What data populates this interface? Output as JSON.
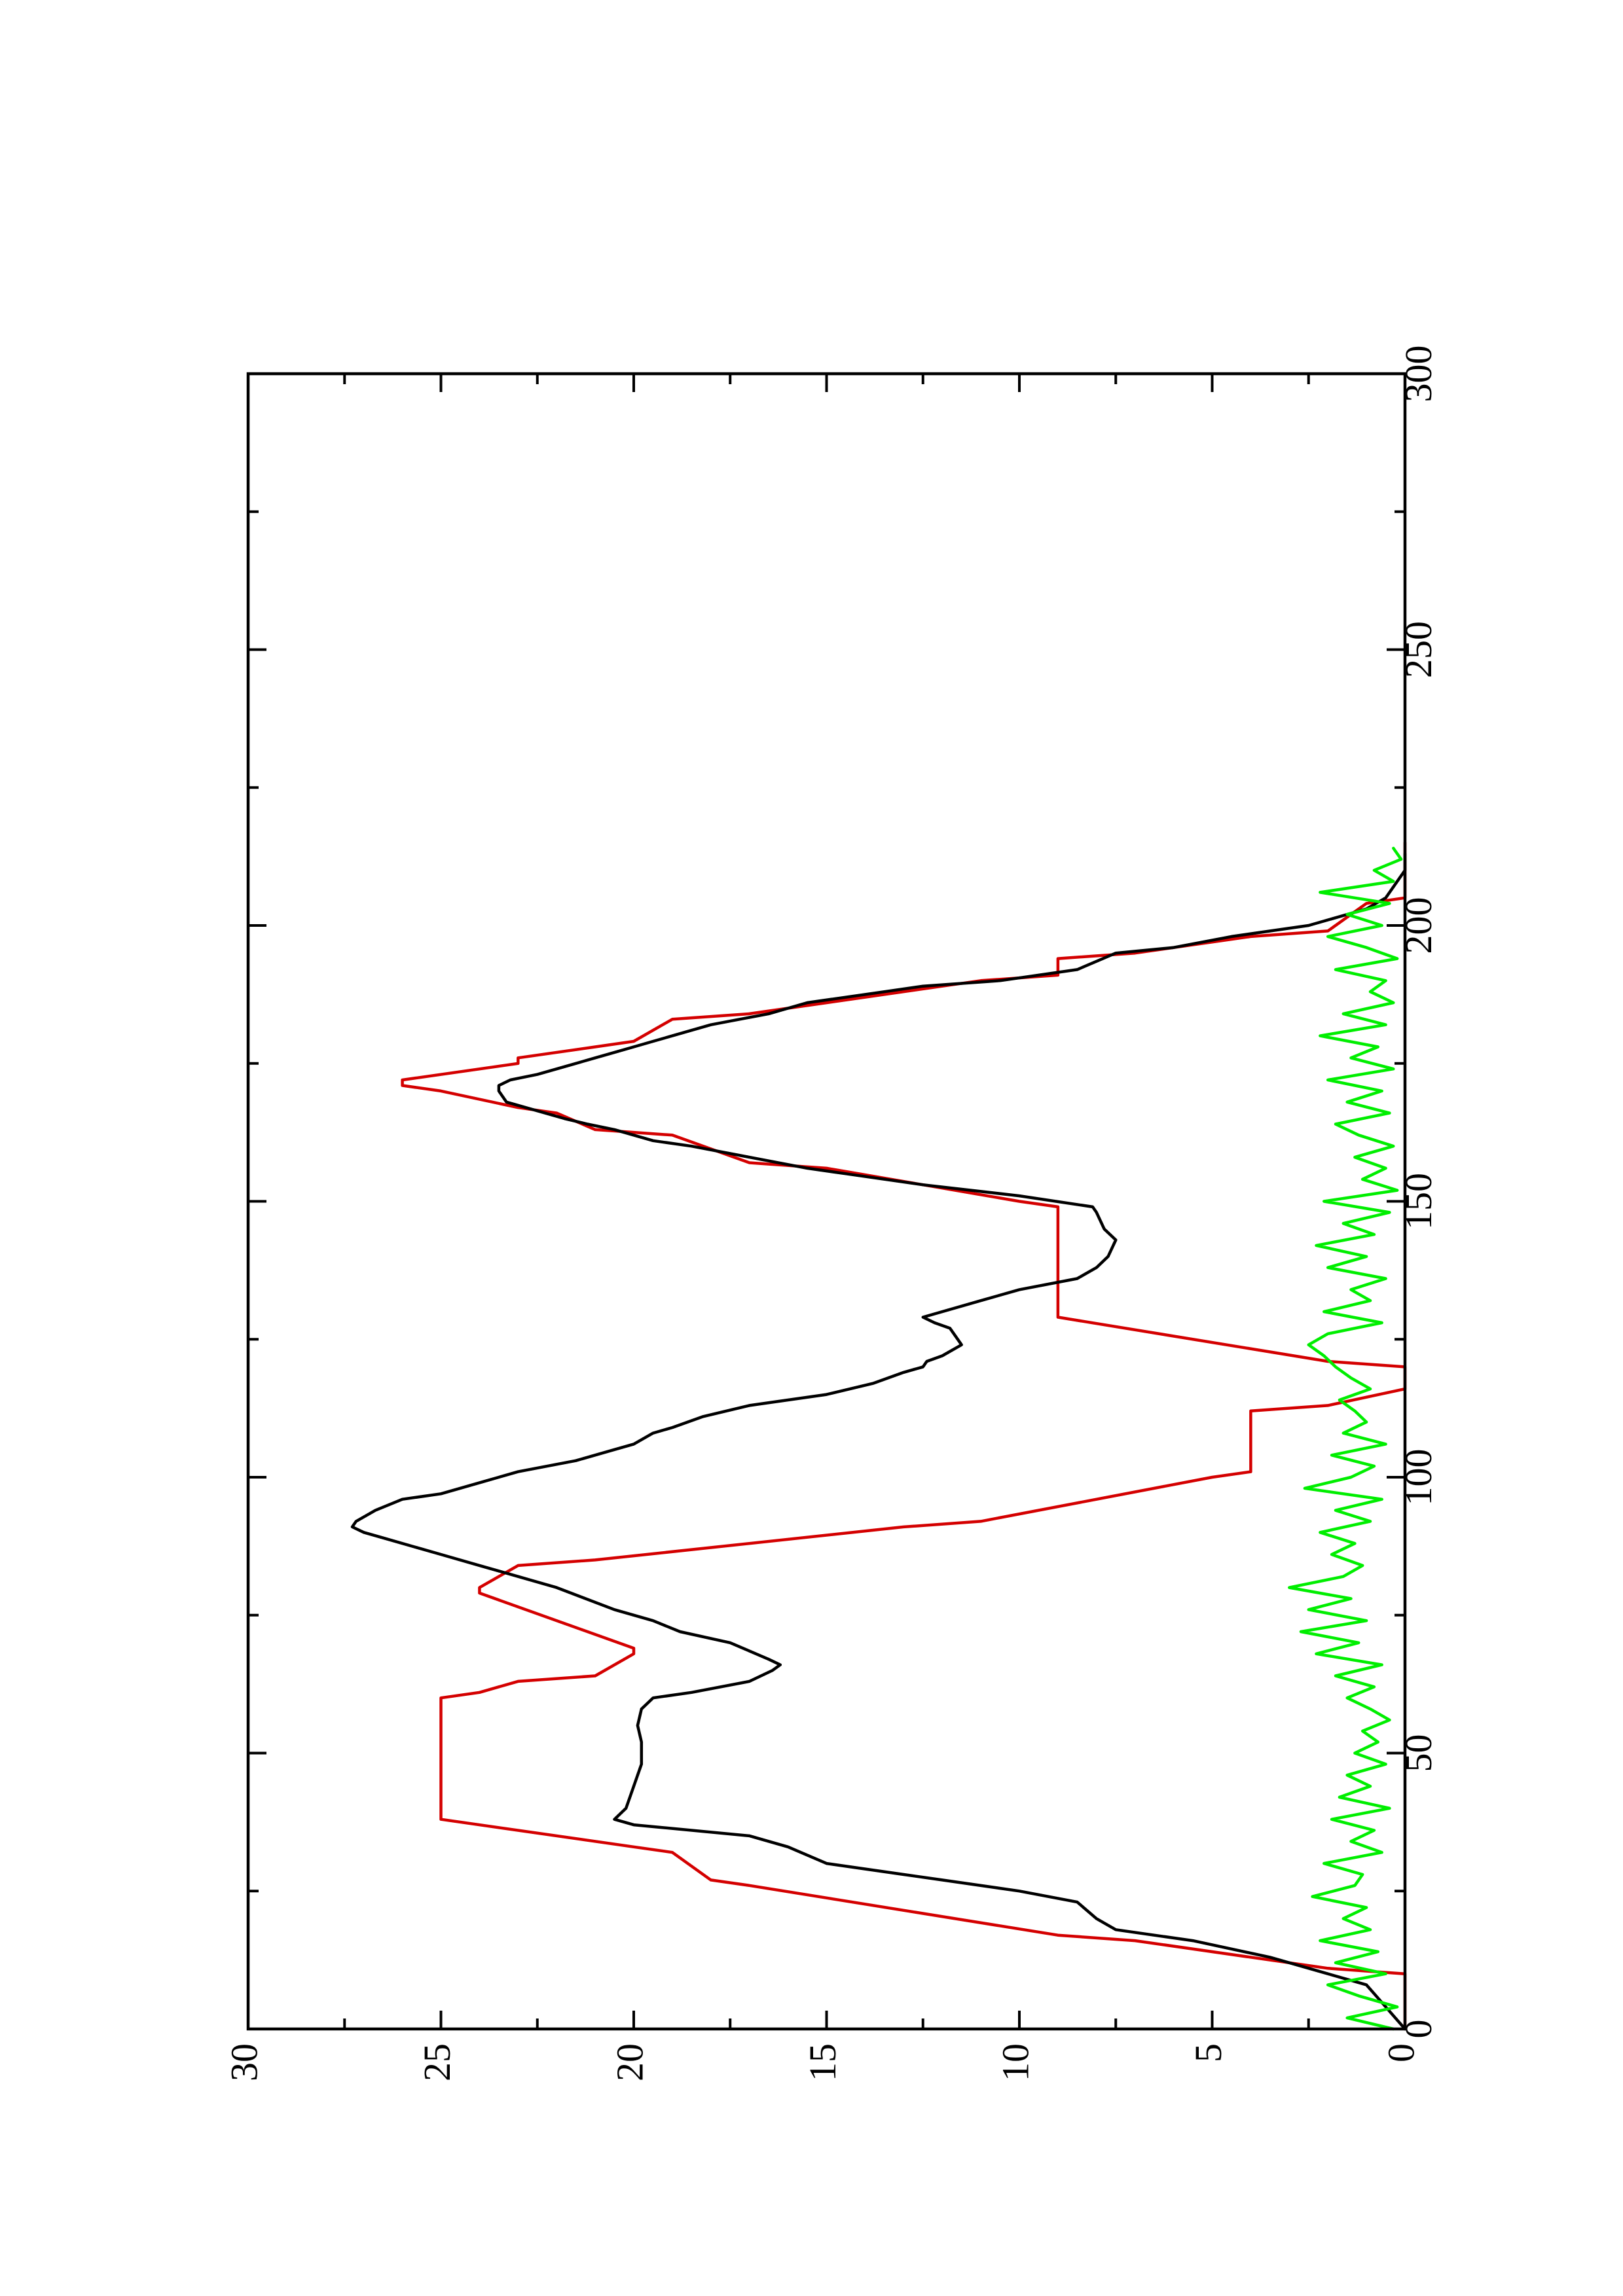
{
  "chart_data": {
    "type": "line",
    "orientation": "rotated-90-ccw",
    "xlim": [
      0,
      300
    ],
    "ylim": [
      0,
      30
    ],
    "x_ticks": [
      "0",
      "50",
      "100",
      "150",
      "200",
      "250",
      "300"
    ],
    "y_ticks": [
      "0",
      "5",
      "10",
      "15",
      "20",
      "25",
      "30"
    ],
    "grid": false,
    "series": [
      {
        "color": "#d40000",
        "style": "step-ramp",
        "x": [
          0,
          10,
          11,
          16,
          17,
          26,
          27,
          32,
          33,
          38,
          60,
          61,
          63,
          64,
          68,
          69,
          79,
          80,
          84,
          85,
          91,
          92,
          100,
          101,
          112,
          113,
          116,
          120,
          121,
          129,
          149,
          150,
          156,
          157,
          162,
          163,
          166,
          167,
          170,
          171,
          172,
          175,
          176,
          178,
          179,
          183,
          184,
          190,
          191,
          194,
          195,
          198,
          199,
          204,
          205,
          215
        ],
        "y": [
          0,
          0,
          2,
          7,
          9,
          17,
          18,
          19,
          20,
          25,
          25,
          24,
          23,
          21,
          20,
          20,
          24,
          24,
          23,
          21,
          13,
          11,
          5,
          4,
          4,
          2,
          0,
          0,
          2,
          9,
          9,
          10,
          15,
          17,
          19,
          21,
          22,
          23,
          25,
          26,
          26,
          23,
          23,
          21,
          20,
          19,
          17,
          11,
          9,
          9,
          7,
          4,
          2,
          1,
          0,
          0
        ]
      },
      {
        "color": "#000000",
        "style": "line",
        "x": [
          0,
          4,
          8,
          10,
          13,
          16,
          18,
          20,
          23,
          25,
          27,
          28,
          30,
          33,
          35,
          37,
          38,
          40,
          44,
          48,
          52,
          55,
          58,
          60,
          61,
          63,
          65,
          66,
          67,
          70,
          72,
          74,
          76,
          80,
          82,
          84,
          86,
          87,
          89,
          90,
          91,
          92,
          94,
          96,
          97,
          99,
          100,
          101,
          103,
          105,
          106,
          108,
          109,
          111,
          113,
          115,
          117,
          119,
          120,
          121,
          122,
          124,
          126,
          127,
          128,
          129,
          132,
          134,
          136,
          138,
          140,
          143,
          145,
          148,
          149,
          151,
          153,
          155,
          156,
          158,
          160,
          161,
          163,
          164,
          165,
          167,
          168,
          170,
          171,
          172,
          173,
          175,
          176,
          177,
          178,
          179,
          180,
          182,
          184,
          186,
          188,
          189,
          190,
          192,
          195,
          196,
          198,
          200,
          203,
          205,
          208,
          210,
          212,
          213
        ],
        "y": [
          0,
          0.5,
          1,
          2,
          3.5,
          5.5,
          7.5,
          8,
          8.5,
          10,
          12,
          13,
          15,
          16,
          17,
          20,
          20.5,
          20.2,
          20,
          19.8,
          19.8,
          19.9,
          19.8,
          19.5,
          18.5,
          17,
          16.4,
          16.2,
          16.5,
          17.5,
          18.8,
          19.5,
          20.5,
          22,
          23,
          24,
          25,
          25.5,
          26.5,
          27,
          27.3,
          27.2,
          26.7,
          26,
          25,
          24,
          23.5,
          23,
          21.5,
          20.5,
          20,
          19.5,
          19,
          18.2,
          17,
          15,
          13.8,
          13,
          12.5,
          12.4,
          12,
          11.5,
          11.7,
          11.8,
          12.2,
          12.5,
          11,
          10,
          8.5,
          8,
          7.7,
          7.5,
          7.8,
          8,
          8.1,
          10,
          12.5,
          14.5,
          15.5,
          17,
          18.5,
          19.5,
          20.5,
          21.2,
          21.8,
          22.8,
          23.3,
          23.5,
          23.5,
          23.2,
          22.5,
          21.5,
          21,
          20.5,
          20,
          19.5,
          19,
          18,
          16.5,
          15.5,
          13.5,
          12.5,
          10.5,
          8.5,
          7.5,
          6,
          4.5,
          2.5,
          1,
          0.5,
          0.2,
          0,
          0,
          0
        ]
      },
      {
        "color": "#00ee00",
        "style": "noisy",
        "x": [
          0,
          2,
          4,
          6,
          8,
          10,
          12,
          14,
          16,
          18,
          20,
          22,
          24,
          26,
          28,
          30,
          32,
          34,
          36,
          38,
          40,
          42,
          44,
          46,
          48,
          50,
          52,
          54,
          56,
          58,
          60,
          62,
          64,
          66,
          68,
          70,
          72,
          74,
          76,
          78,
          80,
          82,
          84,
          86,
          88,
          90,
          92,
          94,
          96,
          98,
          100,
          102,
          104,
          106,
          108,
          110,
          112,
          114,
          116,
          118,
          120,
          122,
          124,
          126,
          128,
          130,
          132,
          134,
          136,
          138,
          140,
          142,
          144,
          146,
          148,
          150,
          152,
          154,
          156,
          158,
          160,
          162,
          164,
          166,
          168,
          170,
          172,
          174,
          176,
          178,
          180,
          182,
          184,
          186,
          188,
          190,
          192,
          194,
          196,
          198,
          200,
          202,
          204,
          206,
          208,
          210,
          212,
          214
        ],
        "y": [
          0.3,
          1.5,
          0.2,
          1.2,
          2.0,
          0.5,
          1.8,
          0.7,
          2.2,
          0.9,
          1.6,
          1.0,
          2.4,
          1.3,
          1.1,
          2.1,
          0.6,
          1.4,
          0.8,
          1.9,
          0.4,
          1.7,
          0.9,
          1.5,
          0.5,
          1.3,
          0.7,
          1.1,
          0.4,
          0.9,
          1.5,
          0.8,
          1.8,
          0.6,
          2.3,
          1.2,
          2.7,
          1.0,
          2.5,
          1.4,
          3.0,
          1.6,
          1.1,
          1.9,
          1.3,
          2.2,
          0.9,
          1.8,
          0.6,
          2.6,
          1.4,
          0.8,
          1.9,
          0.5,
          1.6,
          1.0,
          1.3,
          1.7,
          0.9,
          1.4,
          1.8,
          2.1,
          2.5,
          2.0,
          0.6,
          2.1,
          0.9,
          1.4,
          0.5,
          2.0,
          1.0,
          2.3,
          0.8,
          1.6,
          0.4,
          2.1,
          0.2,
          1.1,
          0.5,
          1.3,
          0.3,
          1.2,
          1.8,
          0.4,
          1.5,
          0.6,
          2.0,
          0.3,
          1.4,
          0.7,
          2.2,
          0.5,
          1.6,
          0.3,
          0.9,
          0.5,
          1.8,
          0.2,
          1.0,
          2.0,
          0.6,
          1.5,
          0.4,
          2.2,
          0.3,
          0.8,
          0.1,
          0.3
        ]
      }
    ]
  }
}
